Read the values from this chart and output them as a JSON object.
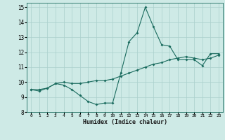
{
  "xlabel": "Humidex (Indice chaleur)",
  "ylabel": "",
  "xlim": [
    -0.5,
    23.5
  ],
  "ylim": [
    8,
    15.3
  ],
  "xticks": [
    0,
    1,
    2,
    3,
    4,
    5,
    6,
    7,
    8,
    9,
    10,
    11,
    12,
    13,
    14,
    15,
    16,
    17,
    18,
    19,
    20,
    21,
    22,
    23
  ],
  "yticks": [
    8,
    9,
    10,
    11,
    12,
    13,
    14,
    15
  ],
  "bg_color": "#ceeae6",
  "grid_color": "#aacfcc",
  "line_color": "#1a6b5e",
  "line1_x": [
    0,
    1,
    2,
    3,
    4,
    5,
    6,
    7,
    8,
    9,
    10,
    11,
    12,
    13,
    14,
    15,
    16,
    17,
    18,
    19,
    20,
    21,
    22,
    23
  ],
  "line1_y": [
    9.5,
    9.4,
    9.6,
    9.9,
    9.8,
    9.5,
    9.1,
    8.7,
    8.5,
    8.6,
    8.6,
    10.6,
    12.7,
    13.3,
    15.0,
    13.7,
    12.5,
    12.4,
    11.5,
    11.5,
    11.5,
    11.1,
    11.9,
    11.9
  ],
  "line2_x": [
    0,
    1,
    2,
    3,
    4,
    5,
    6,
    7,
    8,
    9,
    10,
    11,
    12,
    13,
    14,
    15,
    16,
    17,
    18,
    19,
    20,
    21,
    22,
    23
  ],
  "line2_y": [
    9.5,
    9.5,
    9.6,
    9.9,
    10.0,
    9.9,
    9.9,
    10.0,
    10.1,
    10.1,
    10.2,
    10.4,
    10.6,
    10.8,
    11.0,
    11.2,
    11.3,
    11.5,
    11.6,
    11.7,
    11.6,
    11.5,
    11.6,
    11.8
  ]
}
